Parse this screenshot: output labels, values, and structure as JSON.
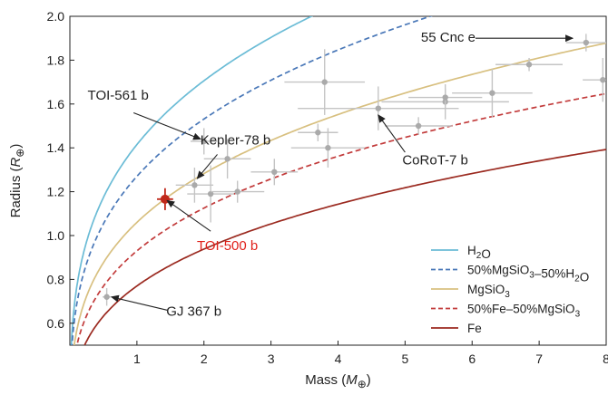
{
  "chart_data": {
    "type": "scatter",
    "xlabel": "Mass (M⊕)",
    "ylabel": "Radius (R⊕)",
    "xlim": [
      0,
      8
    ],
    "ylim": [
      0.5,
      2.0
    ],
    "xticks": [
      1,
      2,
      3,
      4,
      5,
      6,
      7,
      8
    ],
    "yticks": [
      0.6,
      0.8,
      1.0,
      1.2,
      1.4,
      1.6,
      1.8,
      2.0
    ],
    "ytick_labels": [
      "0.6",
      "0.8",
      "1.0",
      "1.2",
      "1.4",
      "1.6",
      "1.8",
      "2.0"
    ],
    "grid": false,
    "legend_position": "bottom-right",
    "series": [
      {
        "name": "H2O",
        "label_parts": [
          [
            "H",
            "n"
          ],
          [
            "2",
            "sub"
          ],
          [
            "O",
            "n"
          ]
        ],
        "color": "#6bbcd6",
        "dash": "solid",
        "coef": 1.415,
        "exp": 0.27
      },
      {
        "name": "50%MgSiO3–50%H2O",
        "label_parts": [
          [
            "50%MgSiO",
            "n"
          ],
          [
            "3",
            "sub"
          ],
          [
            "–50%H",
            "n"
          ],
          [
            "2",
            "sub"
          ],
          [
            "O",
            "n"
          ]
        ],
        "color": "#4a78b8",
        "dash": "dashed",
        "coef": 1.27,
        "exp": 0.27
      },
      {
        "name": "MgSiO3",
        "label_parts": [
          [
            "MgSiO",
            "n"
          ],
          [
            "3",
            "sub"
          ]
        ],
        "color": "#d8c080",
        "dash": "solid",
        "coef": 1.06,
        "exp": 0.275
      },
      {
        "name": "50%Fe–50%MgSiO3",
        "label_parts": [
          [
            "50%Fe–50%MgSiO",
            "n"
          ],
          [
            "3",
            "sub"
          ]
        ],
        "color": "#c23b3b",
        "dash": "dashed",
        "coef": 0.93,
        "exp": 0.275
      },
      {
        "name": "Fe",
        "label_parts": [
          [
            "Fe",
            "n"
          ]
        ],
        "color": "#9b2a20",
        "dash": "solid",
        "coef": 0.77,
        "exp": 0.285
      }
    ],
    "points": [
      {
        "x": 0.55,
        "y": 0.72,
        "xerr": 0.06,
        "yerr": 0.04
      },
      {
        "x": 1.86,
        "y": 1.23,
        "xerr": 0.28,
        "yerr": 0.08
      },
      {
        "x": 2.0,
        "y": 1.43,
        "xerr": 0.2,
        "yerr": 0.06
      },
      {
        "x": 2.1,
        "y": 1.19,
        "xerr": 0.35,
        "yerr": 0.13
      },
      {
        "x": 2.35,
        "y": 1.35,
        "xerr": 0.35,
        "yerr": 0.09
      },
      {
        "x": 2.5,
        "y": 1.2,
        "xerr": 0.4,
        "yerr": 0.05
      },
      {
        "x": 3.05,
        "y": 1.29,
        "xerr": 0.35,
        "yerr": 0.06
      },
      {
        "x": 3.7,
        "y": 1.47,
        "xerr": 0.3,
        "yerr": 0.04
      },
      {
        "x": 3.8,
        "y": 1.7,
        "xerr": 0.6,
        "yerr": 0.15
      },
      {
        "x": 3.85,
        "y": 1.4,
        "xerr": 0.55,
        "yerr": 0.09
      },
      {
        "x": 4.6,
        "y": 1.58,
        "xerr": 1.2,
        "yerr": 0.1
      },
      {
        "x": 5.2,
        "y": 1.5,
        "xerr": 0.5,
        "yerr": 0.04
      },
      {
        "x": 5.6,
        "y": 1.61,
        "xerr": 0.95,
        "yerr": 0.08
      },
      {
        "x": 5.6,
        "y": 1.63,
        "xerr": 0.55,
        "yerr": 0.04
      },
      {
        "x": 6.3,
        "y": 1.65,
        "xerr": 0.6,
        "yerr": 0.11
      },
      {
        "x": 6.85,
        "y": 1.78,
        "xerr": 0.5,
        "yerr": 0.03
      },
      {
        "x": 7.7,
        "y": 1.88,
        "xerr": 0.3,
        "yerr": 0.04
      },
      {
        "x": 7.95,
        "y": 1.71,
        "xerr": 0.3,
        "yerr": 0.1
      }
    ],
    "highlight_point": {
      "x": 1.42,
      "y": 1.166,
      "xerr": 0.12,
      "yerr": 0.05,
      "color": "#c0281a"
    },
    "annotations": [
      {
        "text": "55 Cnc e",
        "color": "#222222",
        "tx": 6.05,
        "ty": 1.905,
        "anchor": "end",
        "arrow_from": [
          6.05,
          1.9
        ],
        "arrow_to": [
          7.5,
          1.9
        ]
      },
      {
        "text": "TOI-561 b",
        "color": "#222222",
        "tx": 0.72,
        "ty": 1.64,
        "anchor": "middle",
        "arrow_from": [
          0.95,
          1.56
        ],
        "arrow_to": [
          1.95,
          1.44
        ]
      },
      {
        "text": "Kepler-78 b",
        "color": "#222222",
        "tx": 2.47,
        "ty": 1.435,
        "anchor": "middle",
        "arrow_from": [
          2.2,
          1.37
        ],
        "arrow_to": [
          1.9,
          1.26
        ]
      },
      {
        "text": "CoRoT-7 b",
        "color": "#222222",
        "tx": 5.45,
        "ty": 1.345,
        "anchor": "middle",
        "arrow_from": [
          5.0,
          1.38
        ],
        "arrow_to": [
          4.6,
          1.55
        ]
      },
      {
        "text": "TOI-500 b",
        "color": "#e0201a",
        "tx": 2.35,
        "ty": 0.955,
        "anchor": "middle",
        "arrow_from": [
          2.1,
          1.02
        ],
        "arrow_to": [
          1.45,
          1.16
        ]
      },
      {
        "text": "GJ 367 b",
        "color": "#222222",
        "tx": 1.85,
        "ty": 0.655,
        "anchor": "middle",
        "arrow_from": [
          1.45,
          0.66
        ],
        "arrow_to": [
          0.62,
          0.72
        ]
      }
    ]
  }
}
